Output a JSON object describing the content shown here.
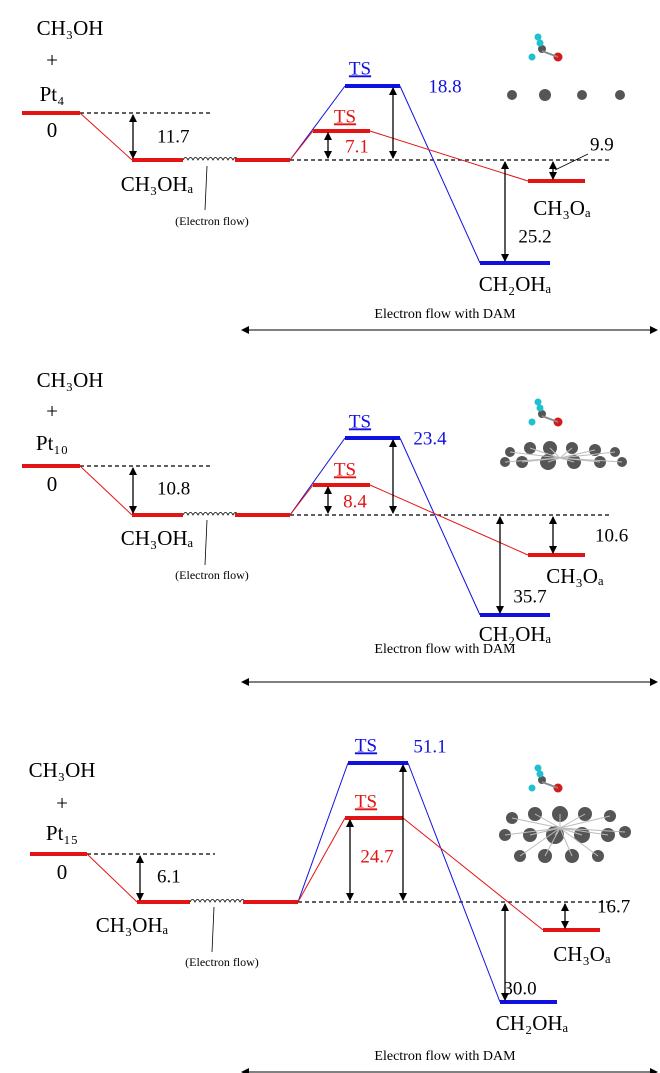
{
  "panels": [
    {
      "reactant": "CH₃OH",
      "plus": "+",
      "catalyst": "Pt₄",
      "zero": "0",
      "adsorbed": "CH₃OHₐ",
      "adsorption_energy": "11.7",
      "electron_flow": "(Electron flow)",
      "ts_blue": "TS",
      "ts_blue_energy": "18.8",
      "ts_red": "TS",
      "ts_red_energy": "7.1",
      "product_red": "CH₃Oₐ",
      "product_red_energy": "9.9",
      "product_blue": "CH₂OHₐ",
      "product_blue_energy": "25.2",
      "dam": "Electron flow with DAM"
    },
    {
      "reactant": "CH₃OH",
      "plus": "+",
      "catalyst": "Pt₁₀",
      "zero": "0",
      "adsorbed": "CH₃OHₐ",
      "adsorption_energy": "10.8",
      "electron_flow": "(Electron flow)",
      "ts_blue": "TS",
      "ts_blue_energy": "23.4",
      "ts_red": "TS",
      "ts_red_energy": "8.4",
      "product_red": "CH₃Oₐ",
      "product_red_energy": "10.6",
      "product_blue": "CH₂OHₐ",
      "product_blue_energy": "35.7",
      "dam": "Electron flow with DAM"
    },
    {
      "reactant": "CH₃OH",
      "plus": "+",
      "catalyst": "Pt₁₅",
      "zero": "0",
      "adsorbed": "CH₃OHₐ",
      "adsorption_energy": "6.1",
      "electron_flow": "(Electron flow)",
      "ts_blue": "TS",
      "ts_blue_energy": "51.1",
      "ts_red": "TS",
      "ts_red_energy": "24.7",
      "product_red": "CH₃Oₐ",
      "product_red_energy": "16.7",
      "product_blue": "CH₂OHₐ",
      "product_blue_energy": "30.0",
      "dam": "Electron flow with DAM"
    }
  ]
}
